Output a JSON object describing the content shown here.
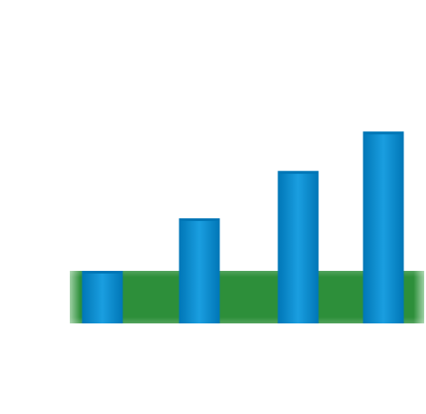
{
  "colors": {
    "background": "#ffffff",
    "bar_fill": "#0289cf",
    "bar_fill_light": "#1a9ee0",
    "bar_fill_dark": "#0076b6",
    "band_fill": "#2d8f3a",
    "band_fill_light": "#3aa548",
    "band_edge": "#9fd0a5"
  },
  "chart_data": {
    "type": "bar",
    "title": "",
    "xlabel": "",
    "ylabel": "",
    "categories": [
      "",
      "",
      "",
      ""
    ],
    "series": [
      {
        "values": [
          1.0,
          2.0,
          2.9,
          3.65
        ]
      }
    ],
    "reference_band": {
      "from": 0,
      "to": 1.0
    },
    "ylim": [
      0,
      4
    ],
    "grid": false,
    "legend": "none"
  }
}
